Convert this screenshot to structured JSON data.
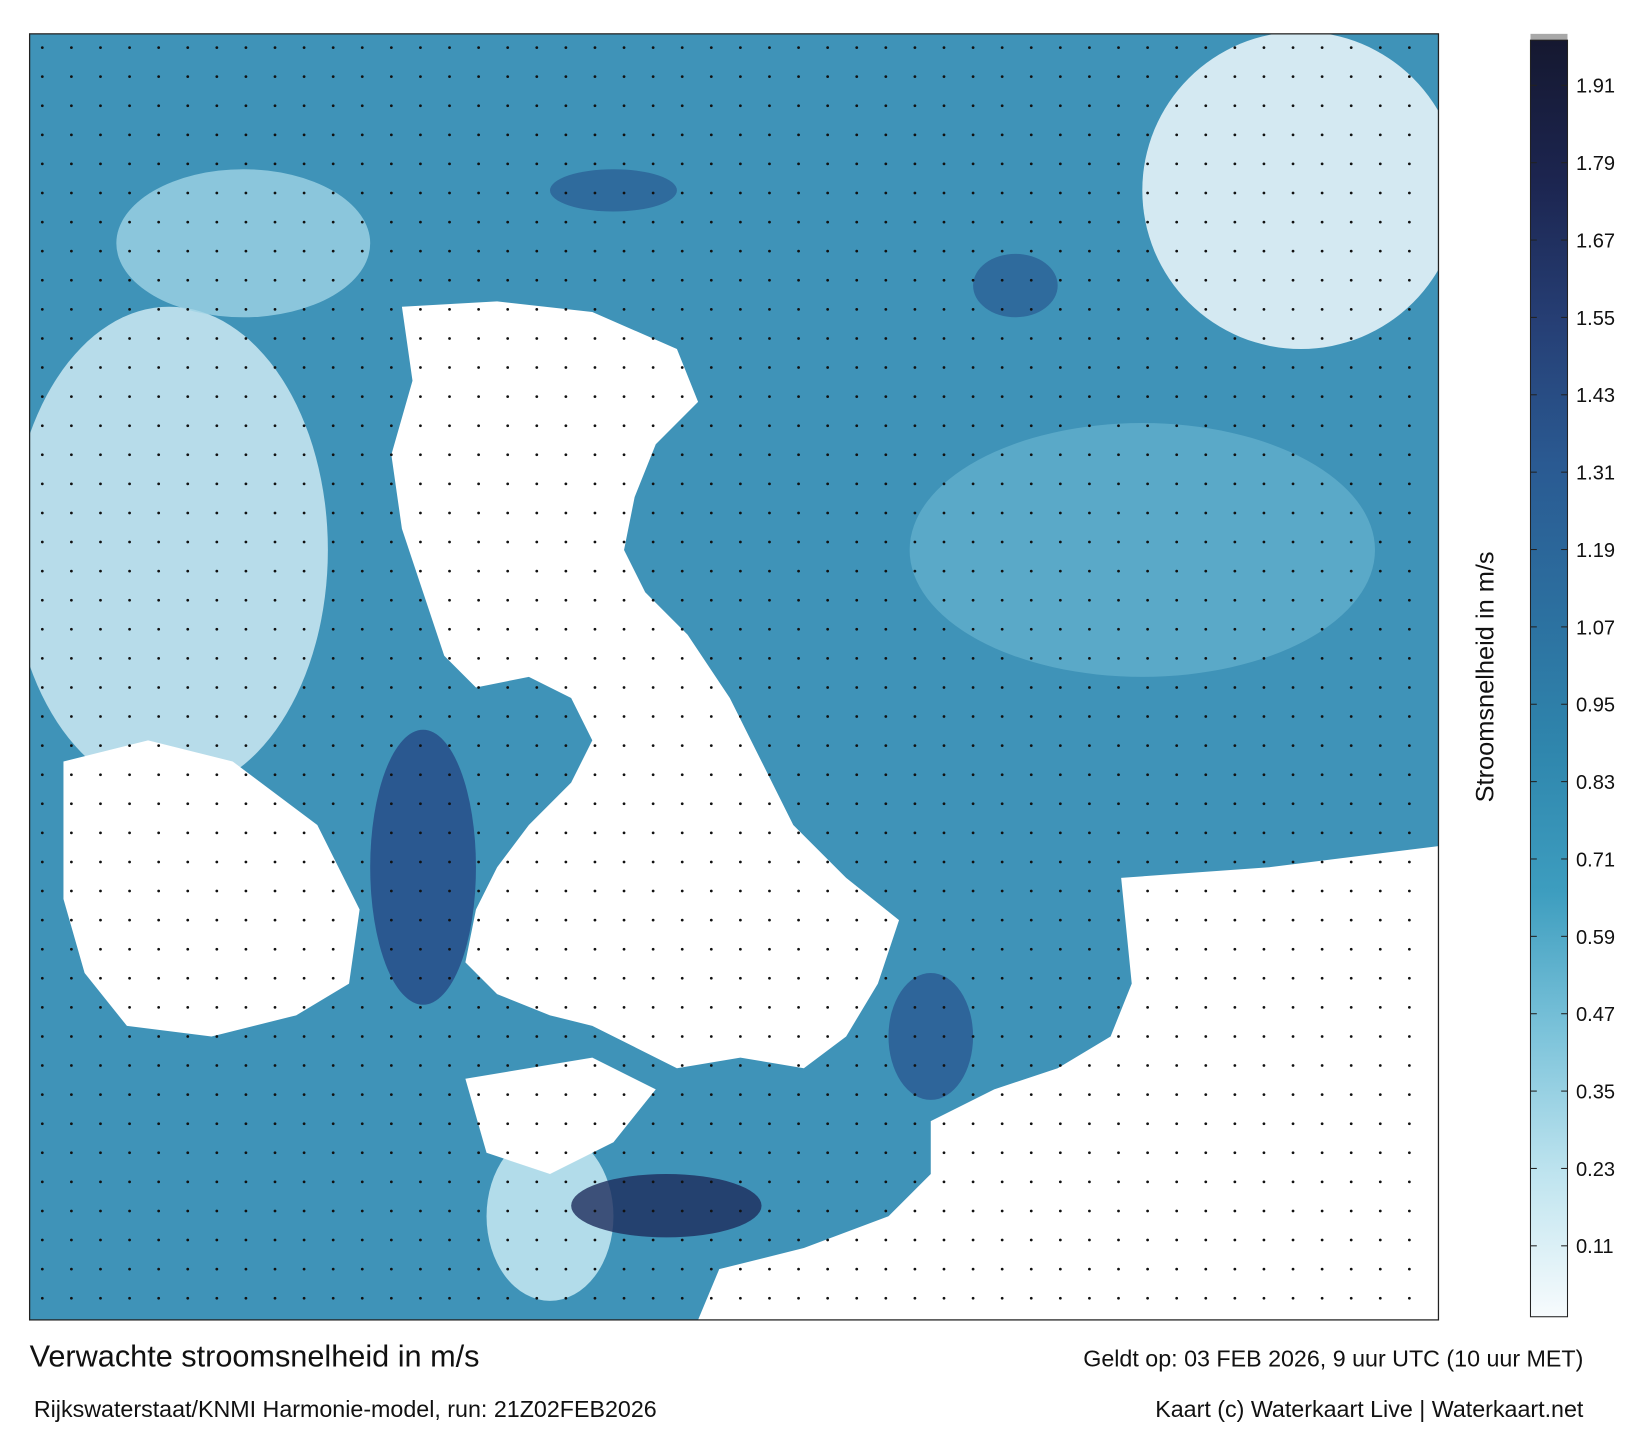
{
  "map": {
    "title": "Verwachte stroomsnelheid in m/s",
    "subtitle": "Rijkswaterstaat/KNMI Harmonie-model, run: 21Z02FEB2026",
    "valid_time": "Geldt op: 03 FEB 2026, 9 uur UTC (10 uur MET)",
    "credit": "Kaart (c) Waterkaart Live | Waterkaart.net",
    "colorbar": {
      "label": "Stroomsnelheid in m/s",
      "lim": [
        0,
        1.98
      ],
      "ticks": [
        0.11,
        0.23,
        0.35,
        0.47,
        0.59,
        0.71,
        0.83,
        0.95,
        1.07,
        1.19,
        1.31,
        1.43,
        1.55,
        1.67,
        1.79,
        1.91
      ],
      "colors": [
        "#f7fbfd",
        "#bfe4ef",
        "#7cc3da",
        "#3d9dbf",
        "#2f86ad",
        "#2c6f9f",
        "#2a5a92",
        "#263f75",
        "#1c2550",
        "#151830"
      ]
    }
  }
}
